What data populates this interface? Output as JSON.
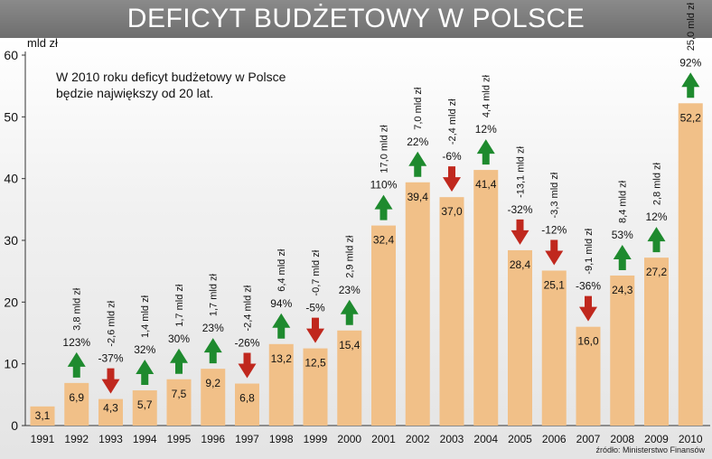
{
  "header": {
    "title": "DEFICYT BUDŻETOWY W POLSCE"
  },
  "note": {
    "line1": "W 2010 roku deficyt budżetowy w Polsce",
    "line2": "będzie największy od  20 lat."
  },
  "source": "źródło: Ministerstwo Finansów",
  "colors": {
    "bar": "#f1c088",
    "up_arrow": "#1e8a2e",
    "down_arrow": "#c0281e",
    "title_bg": "#7a7a7a"
  },
  "chart_data": {
    "type": "bar",
    "ylabel": "mld zł",
    "ylim": [
      0,
      60
    ],
    "yticks": [
      0,
      10,
      20,
      30,
      40,
      50,
      60
    ],
    "categories": [
      "1991",
      "1992",
      "1993",
      "1994",
      "1995",
      "1996",
      "1997",
      "1998",
      "1999",
      "2000",
      "2001",
      "2002",
      "2003",
      "2004",
      "2005",
      "2006",
      "2007",
      "2008",
      "2009",
      "2010"
    ],
    "values": [
      3.1,
      6.9,
      4.3,
      5.7,
      7.5,
      9.2,
      6.8,
      13.2,
      12.5,
      15.4,
      32.4,
      39.4,
      37.0,
      41.4,
      28.4,
      25.1,
      16.0,
      24.3,
      27.2,
      52.2
    ],
    "value_labels": [
      "3,1",
      "6,9",
      "4,3",
      "5,7",
      "7,5",
      "9,2",
      "6,8",
      "13,2",
      "12,5",
      "15,4",
      "32,4",
      "39,4",
      "37,0",
      "41,4",
      "28,4",
      "25,1",
      "16,0",
      "24,3",
      "27,2",
      "52,2"
    ],
    "changes": [
      null,
      {
        "pct": "123%",
        "abs": "3,8 mld zł",
        "dir": "up"
      },
      {
        "pct": "-37%",
        "abs": "-2,6 mld zł",
        "dir": "down"
      },
      {
        "pct": "32%",
        "abs": "1,4 mld zł",
        "dir": "up"
      },
      {
        "pct": "30%",
        "abs": "1,7 mld zł",
        "dir": "up"
      },
      {
        "pct": "23%",
        "abs": "1,7 mld zł",
        "dir": "up"
      },
      {
        "pct": "-26%",
        "abs": "-2,4 mld zł",
        "dir": "down"
      },
      {
        "pct": "94%",
        "abs": "6,4 mld zł",
        "dir": "up"
      },
      {
        "pct": "-5%",
        "abs": "-0,7 mld zł",
        "dir": "down"
      },
      {
        "pct": "23%",
        "abs": "2,9 mld zł",
        "dir": "up"
      },
      {
        "pct": "110%",
        "abs": "17,0 mld zł",
        "dir": "up"
      },
      {
        "pct": "22%",
        "abs": "7,0 mld zł",
        "dir": "up"
      },
      {
        "pct": "-6%",
        "abs": "-2,4 mld zł",
        "dir": "down"
      },
      {
        "pct": "12%",
        "abs": "4,4 mld zł",
        "dir": "up"
      },
      {
        "pct": "-32%",
        "abs": "-13,1 mld zł",
        "dir": "down"
      },
      {
        "pct": "-12%",
        "abs": "-3,3 mld zł",
        "dir": "down"
      },
      {
        "pct": "-36%",
        "abs": "-9,1 mld zł",
        "dir": "down"
      },
      {
        "pct": "53%",
        "abs": "8,4 mld zł",
        "dir": "up"
      },
      {
        "pct": "12%",
        "abs": "2,8 mld zł",
        "dir": "up"
      },
      {
        "pct": "92%",
        "abs": "25,0 mld zł",
        "dir": "up"
      }
    ],
    "grid": false
  }
}
